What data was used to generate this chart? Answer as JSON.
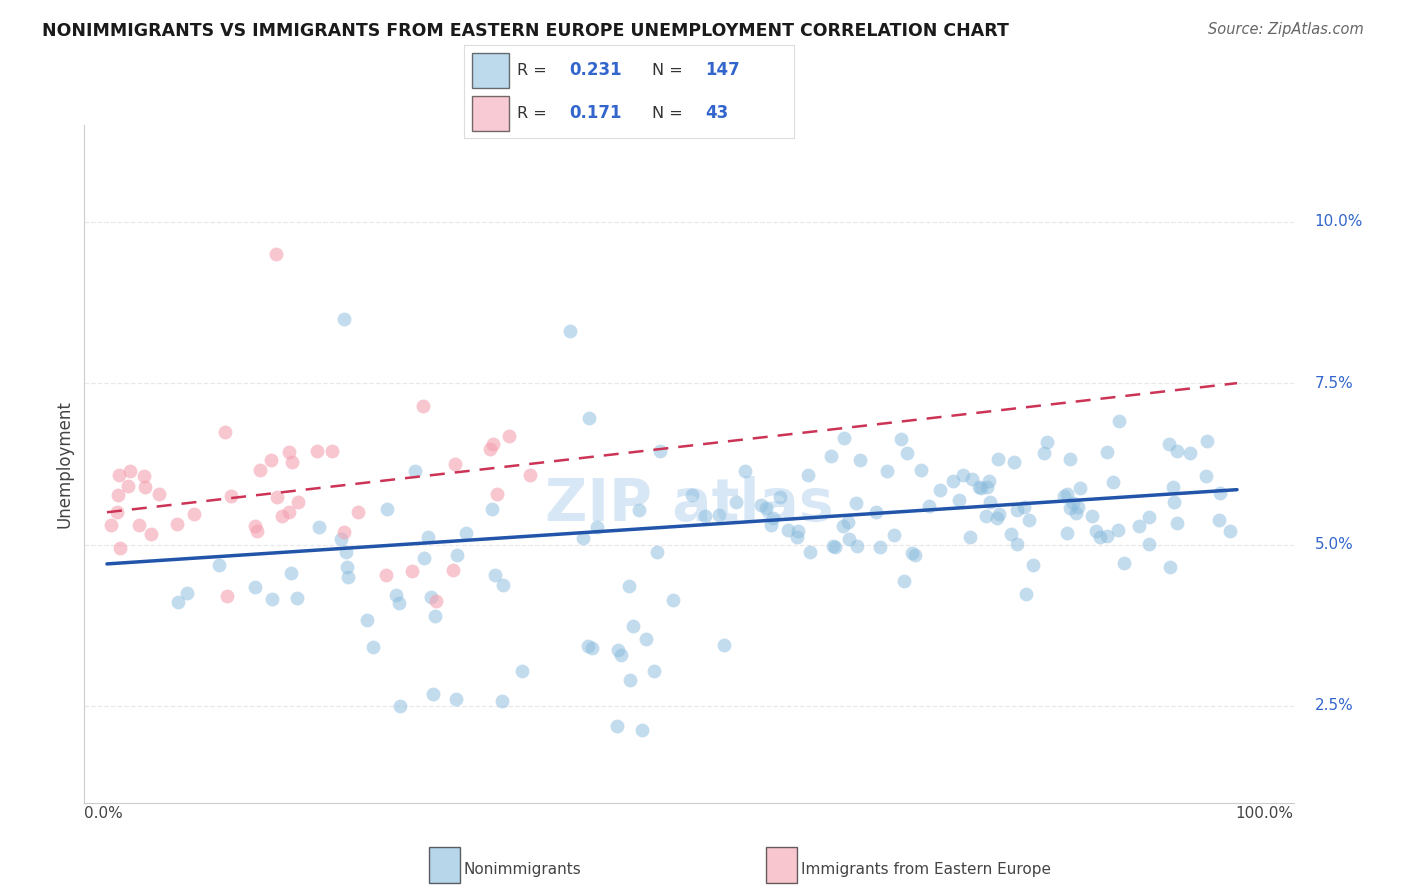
{
  "title": "NONIMMIGRANTS VS IMMIGRANTS FROM EASTERN EUROPE UNEMPLOYMENT CORRELATION CHART",
  "source": "Source: ZipAtlas.com",
  "ylabel": "Unemployment",
  "yticks": [
    2.5,
    5.0,
    7.5,
    10.0
  ],
  "ytick_labels": [
    "2.5%",
    "5.0%",
    "7.5%",
    "10.0%"
  ],
  "xlim": [
    -2,
    105
  ],
  "ylim": [
    1.0,
    11.5
  ],
  "R_blue": 0.231,
  "N_blue": 147,
  "R_pink": 0.171,
  "N_pink": 43,
  "blue_color": "#88bbdd",
  "pink_color": "#f4a0b0",
  "trend_blue_color": "#2255aa",
  "trend_pink_color": "#cc3355",
  "grid_color": "#e8e8e8",
  "value_color": "#3366cc",
  "legend_label_blue": "Nonimmigrants",
  "legend_label_pink": "Immigrants from Eastern Europe",
  "blue_trend_start_y": 4.7,
  "blue_trend_end_y": 5.85,
  "pink_trend_start_y": 5.5,
  "pink_trend_end_y": 7.5
}
